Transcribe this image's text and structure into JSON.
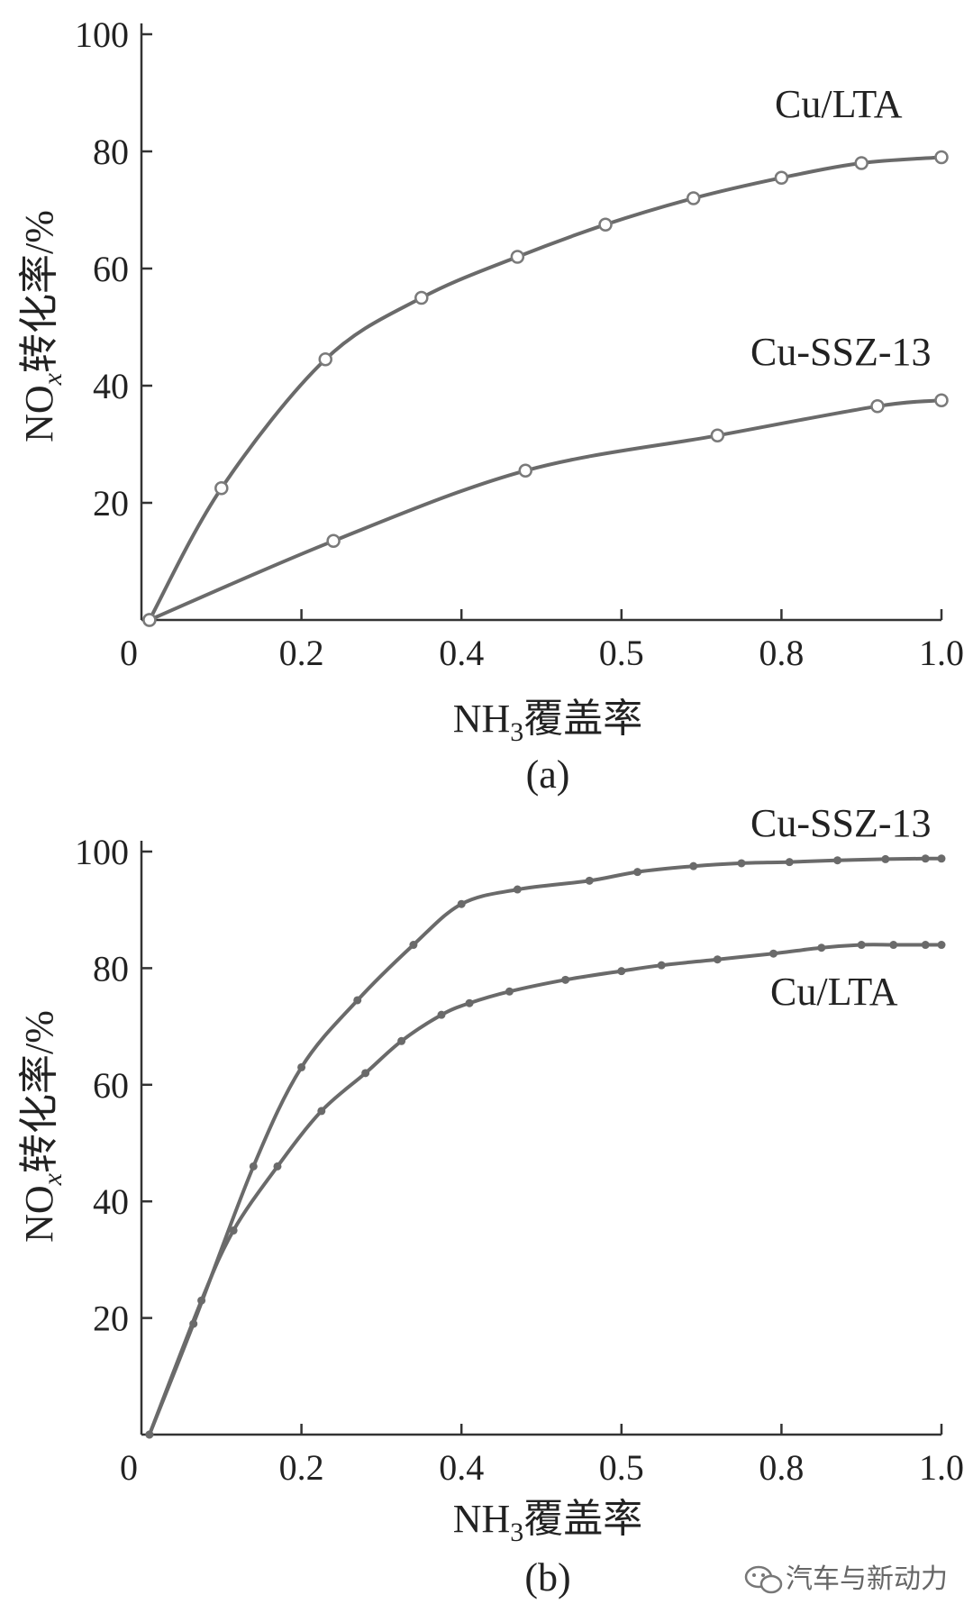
{
  "chart_data": [
    {
      "type": "line",
      "panel_label": "(a)",
      "xlabel_main": "NH",
      "xlabel_sub": "3",
      "xlabel_rest": "覆盖率",
      "ylabel_main": "NO",
      "ylabel_sub": "x",
      "ylabel_rest": "转化率/%",
      "xlim": [
        0,
        1.0
      ],
      "ylim": [
        0,
        100
      ],
      "x_tick_labels": [
        "0",
        "0.2",
        "0.4",
        "0.5",
        "0.8",
        "1.0"
      ],
      "y_tick_labels": [
        "20",
        "40",
        "60",
        "80",
        "100"
      ],
      "y_ticks": [
        20,
        40,
        60,
        80,
        100
      ],
      "marker": "open-circle",
      "series": [
        {
          "name": "Cu/LTA",
          "x": [
            0.01,
            0.1,
            0.23,
            0.35,
            0.47,
            0.58,
            0.69,
            0.8,
            0.9,
            1.0
          ],
          "y": [
            0,
            22.5,
            44.5,
            55,
            62,
            67.5,
            72,
            75.5,
            78,
            79
          ]
        },
        {
          "name": "Cu-SSZ-13",
          "x": [
            0.01,
            0.24,
            0.48,
            0.72,
            0.92,
            1.0
          ],
          "y": [
            0,
            13.5,
            25.5,
            31.5,
            36.5,
            37.5
          ]
        }
      ]
    },
    {
      "type": "line",
      "panel_label": "(b)",
      "xlabel_main": "NH",
      "xlabel_sub": "3",
      "xlabel_rest": "覆盖率",
      "ylabel_main": "NO",
      "ylabel_sub": "x",
      "ylabel_rest": "转化率/%",
      "xlim": [
        0,
        1.0
      ],
      "ylim": [
        0,
        100
      ],
      "x_tick_labels": [
        "0",
        "0.2",
        "0.4",
        "0.5",
        "0.8",
        "1.0"
      ],
      "y_tick_labels": [
        "20",
        "40",
        "60",
        "80",
        "100"
      ],
      "y_ticks": [
        20,
        40,
        60,
        80,
        100
      ],
      "marker": "filled-dot",
      "series": [
        {
          "name": "Cu-SSZ-13",
          "x": [
            0.01,
            0.065,
            0.14,
            0.2,
            0.27,
            0.34,
            0.4,
            0.47,
            0.56,
            0.62,
            0.69,
            0.75,
            0.81,
            0.87,
            0.93,
            0.98,
            1.0
          ],
          "y": [
            0,
            19,
            46,
            63,
            74.5,
            84,
            91,
            93.5,
            95,
            96.5,
            97.5,
            98,
            98.2,
            98.5,
            98.7,
            98.8,
            98.8
          ]
        },
        {
          "name": "Cu/LTA",
          "x": [
            0.01,
            0.075,
            0.115,
            0.17,
            0.225,
            0.28,
            0.325,
            0.375,
            0.41,
            0.46,
            0.53,
            0.6,
            0.65,
            0.72,
            0.79,
            0.85,
            0.9,
            0.94,
            0.98,
            1.0
          ],
          "y": [
            0,
            23,
            35,
            46,
            55.5,
            62,
            67.5,
            72,
            74,
            76,
            78,
            79.5,
            80.5,
            81.5,
            82.5,
            83.5,
            84,
            84,
            84,
            84
          ]
        }
      ]
    }
  ],
  "watermark": "汽车与新动力"
}
